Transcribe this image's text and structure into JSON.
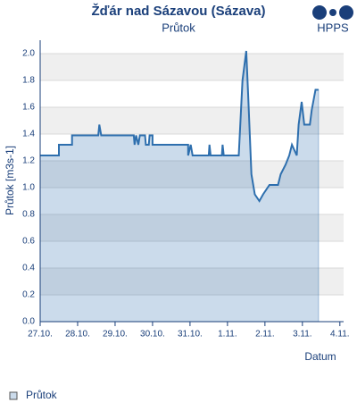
{
  "logo": "HPPS",
  "chart_data": {
    "type": "line",
    "title": "Žďár nad Sázavou (Sázava)",
    "subtitle": "Průtok",
    "y_label": "Průtok [m3s-1]",
    "x_label": "Datum",
    "xlim": [
      0,
      8.1
    ],
    "xticks": [
      {
        "value": 0,
        "label": "27.10."
      },
      {
        "value": 1,
        "label": "28.10."
      },
      {
        "value": 2,
        "label": "29.10."
      },
      {
        "value": 3,
        "label": "30.10."
      },
      {
        "value": 4,
        "label": "31.10."
      },
      {
        "value": 5,
        "label": "1.11."
      },
      {
        "value": 6,
        "label": "2.11."
      },
      {
        "value": 7,
        "label": "3.11."
      },
      {
        "value": 8,
        "label": "4.11."
      }
    ],
    "ylim": [
      0,
      2.1
    ],
    "yticks": [
      {
        "value": 0,
        "label": "0.0"
      },
      0.2,
      0.4,
      0.6,
      0.8,
      {
        "value": 1,
        "label": "1.0"
      },
      1.2,
      1.4,
      1.6,
      1.8,
      {
        "value": 2,
        "label": "2.0"
      }
    ],
    "grid": true,
    "legend": "bottom-left",
    "series": [
      {
        "name": "Průtok",
        "color": "#2e6fae",
        "x": [
          0,
          0.5,
          0.5,
          0.85,
          0.85,
          1.55,
          1.58,
          1.63,
          2.5,
          2.52,
          2.56,
          2.62,
          2.66,
          2.8,
          2.82,
          2.9,
          2.92,
          3.0,
          3.0,
          3.95,
          3.95,
          4.02,
          4.07,
          4.5,
          4.52,
          4.55,
          4.85,
          4.87,
          4.9,
          5.3,
          5.4,
          5.5,
          5.55,
          5.64,
          5.73,
          5.85,
          5.95,
          6.12,
          6.35,
          6.42,
          6.55,
          6.65,
          6.72,
          6.85,
          6.9,
          6.98,
          7.05,
          7.2,
          7.25,
          7.35,
          7.43
        ],
        "values": [
          1.24,
          1.24,
          1.32,
          1.32,
          1.39,
          1.39,
          1.47,
          1.39,
          1.39,
          1.32,
          1.39,
          1.32,
          1.39,
          1.39,
          1.32,
          1.32,
          1.39,
          1.39,
          1.32,
          1.32,
          1.24,
          1.32,
          1.24,
          1.24,
          1.32,
          1.24,
          1.24,
          1.32,
          1.24,
          1.24,
          1.8,
          2.02,
          1.7,
          1.1,
          0.95,
          0.9,
          0.95,
          1.02,
          1.02,
          1.1,
          1.17,
          1.24,
          1.32,
          1.24,
          1.47,
          1.64,
          1.47,
          1.47,
          1.58,
          1.73,
          1.73
        ]
      }
    ]
  }
}
